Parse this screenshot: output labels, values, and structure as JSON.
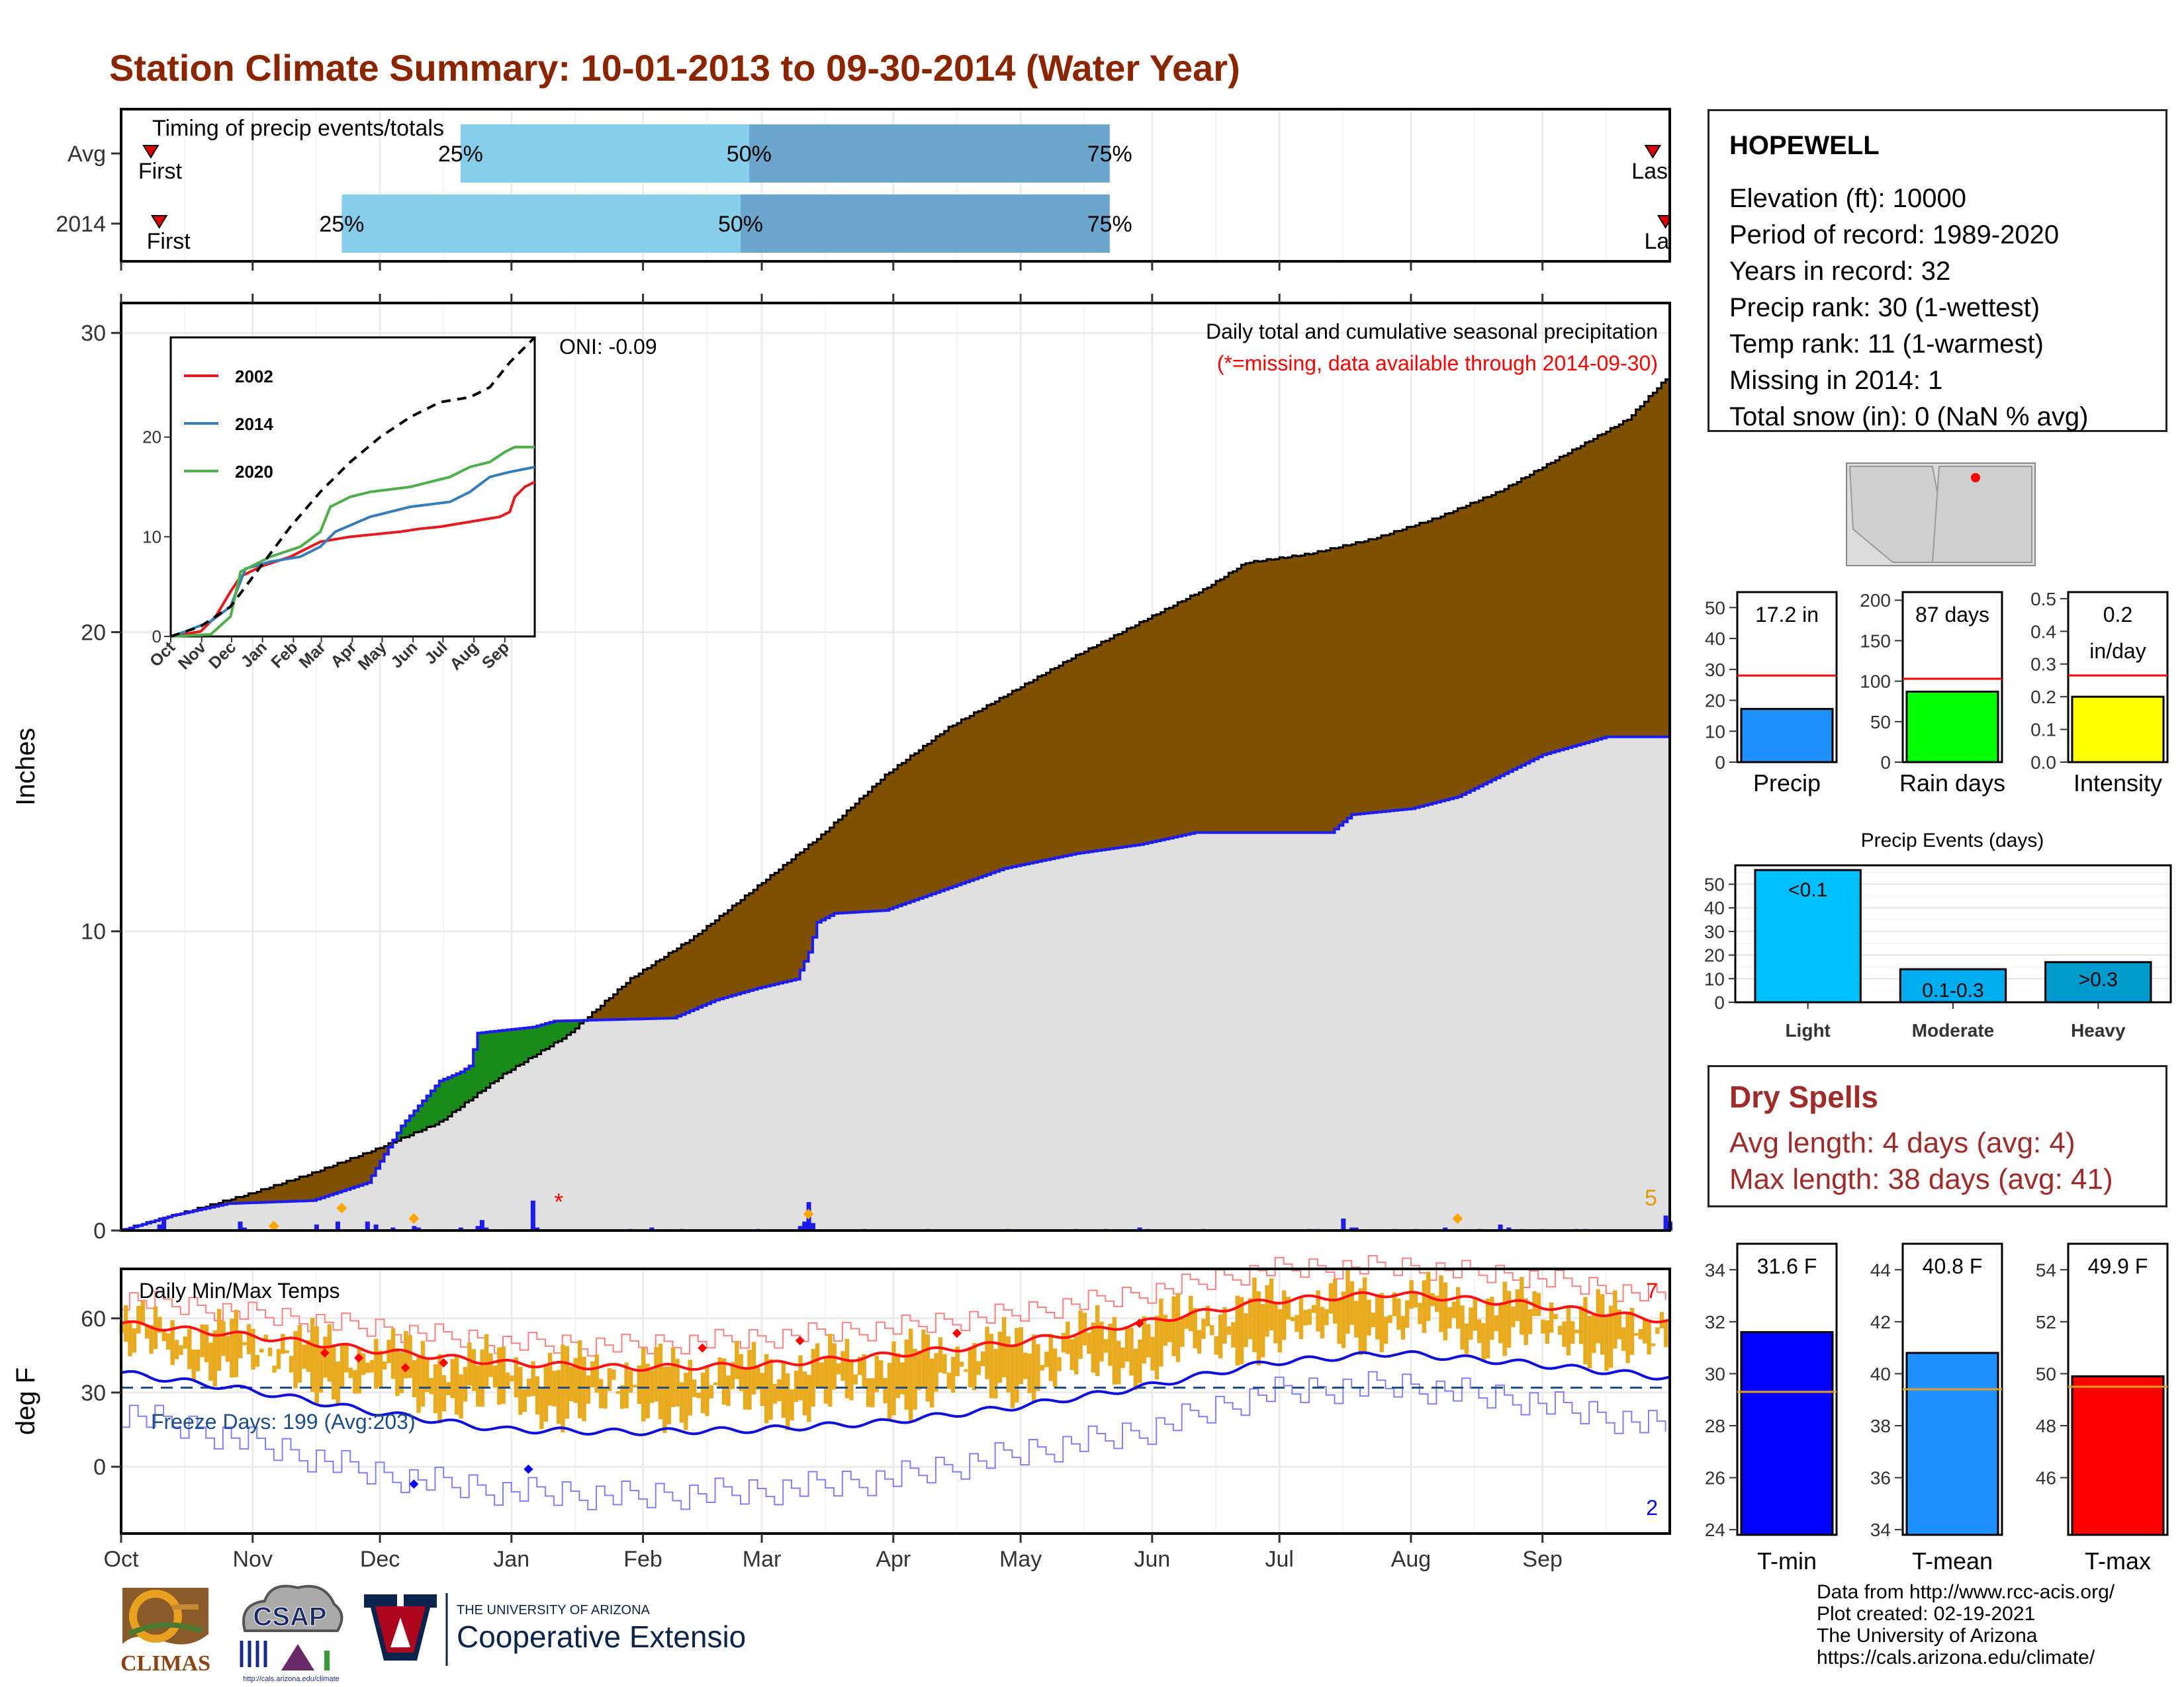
{
  "title": "Station Climate Summary: 10-01-2013 to 09-30-2014 (Water Year)",
  "station": {
    "name": "HOPEWELL",
    "lines": [
      "Elevation (ft): 10000",
      "Period of record: 1989-2020",
      "Years in record: 32",
      "Precip rank: 30 (1-wettest)",
      "Temp rank: 11 (1-warmest)",
      "Missing in 2014: 1",
      "Total snow (in): 0 (NaN % avg)"
    ]
  },
  "dry_spells": {
    "title": "Dry Spells",
    "avg_length": "Avg length: 4 days (avg: 4)",
    "max_length": "Max length: 38 days (avg: 41)"
  },
  "credits": [
    "Data from http://www.rcc-acis.org/",
    "Plot created: 02-19-2021",
    "The University of Arizona",
    "https://cals.arizona.edu/climate/"
  ],
  "logos": {
    "climas": "CLIMAS",
    "csap": "CSAP",
    "csap_url": "http://cals.arizona.edu/climate",
    "ua_small": "THE UNIVERSITY OF ARIZONA",
    "ua_big": "Cooperative Extension"
  },
  "colors": {
    "title": "#8B2500",
    "brown": "#7F5000",
    "precip_blue": "#1C1CF0",
    "gray_fill": "#E0E0E0",
    "temp_bar": "#E8AA1E",
    "tmax_line": "#FF1111",
    "tmin_line": "#1010DD",
    "light_blue": "#87CEEB",
    "mid_blue": "#6CA6CD",
    "dry_text": "#A02B2B"
  },
  "chart_data": [
    {
      "id": "timing",
      "type": "bar",
      "subtitle": "Timing of precip events/totals",
      "rows": [
        {
          "label": "Avg",
          "first": "First",
          "last": "Last",
          "first_date": "2013-10-08",
          "last_date": "2014-09-27",
          "p25": "2013-12-20",
          "p50": "2014-02-26",
          "p75": "2014-05-22"
        },
        {
          "label": "2014",
          "first": "First",
          "last": "Last",
          "first_date": "2013-10-10",
          "last_date": "2014-09-30",
          "p25": "2013-11-22",
          "p50": "2014-02-24",
          "p75": "2014-05-22"
        }
      ],
      "percent_labels": [
        "25%",
        "50%",
        "75%"
      ]
    },
    {
      "id": "precip",
      "type": "area",
      "ylabel": "Inches",
      "ylim": [
        0,
        31
      ],
      "yticks": [
        0,
        10,
        20,
        30
      ],
      "subtitle": "Daily total and cumulative seasonal precipitation",
      "note": "(*=missing, data available through 2014-09-30)",
      "oni": "ONI: -0.09",
      "corner_count": "5",
      "missing_marker": "*",
      "avg_cumulative": [
        [
          0,
          0
        ],
        [
          15,
          0.6
        ],
        [
          30,
          1.2
        ],
        [
          45,
          1.9
        ],
        [
          60,
          2.7
        ],
        [
          75,
          3.6
        ],
        [
          90,
          5.2
        ],
        [
          105,
          6.5
        ],
        [
          120,
          8.4
        ],
        [
          135,
          9.8
        ],
        [
          150,
          11.5
        ],
        [
          165,
          13.2
        ],
        [
          180,
          15.2
        ],
        [
          195,
          16.8
        ],
        [
          210,
          18.0
        ],
        [
          225,
          19.2
        ],
        [
          240,
          20.3
        ],
        [
          255,
          21.4
        ],
        [
          265,
          22.3
        ],
        [
          280,
          22.6
        ],
        [
          295,
          23.1
        ],
        [
          310,
          23.8
        ],
        [
          325,
          24.7
        ],
        [
          340,
          25.9
        ],
        [
          355,
          27.1
        ],
        [
          365,
          28.6
        ]
      ],
      "obs_cumulative": [
        [
          0,
          0
        ],
        [
          12,
          0.5
        ],
        [
          25,
          0.9
        ],
        [
          45,
          1.0
        ],
        [
          58,
          1.6
        ],
        [
          66,
          3.5
        ],
        [
          75,
          5.0
        ],
        [
          80,
          5.3
        ],
        [
          82,
          5.5
        ],
        [
          84,
          6.6
        ],
        [
          97,
          6.8
        ],
        [
          102,
          7.0
        ],
        [
          130,
          7.1
        ],
        [
          140,
          7.7
        ],
        [
          150,
          8.1
        ],
        [
          159,
          8.4
        ],
        [
          162,
          9.3
        ],
        [
          164,
          10.3
        ],
        [
          168,
          10.6
        ],
        [
          180,
          10.7
        ],
        [
          198,
          11.6
        ],
        [
          208,
          12.1
        ],
        [
          225,
          12.6
        ],
        [
          240,
          12.9
        ],
        [
          253,
          13.3
        ],
        [
          285,
          13.3
        ],
        [
          290,
          13.9
        ],
        [
          304,
          14.1
        ],
        [
          315,
          14.5
        ],
        [
          325,
          15.2
        ],
        [
          335,
          15.9
        ],
        [
          350,
          16.5
        ],
        [
          364,
          16.5
        ],
        [
          365,
          17.2
        ]
      ],
      "daily_bars": [
        [
          9,
          0.2
        ],
        [
          10,
          0.4
        ],
        [
          28,
          0.3
        ],
        [
          29,
          0.1
        ],
        [
          46,
          0.2
        ],
        [
          51,
          0.3
        ],
        [
          58,
          0.3
        ],
        [
          60,
          0.2
        ],
        [
          64,
          0.1
        ],
        [
          69,
          0.15
        ],
        [
          70,
          0.1
        ],
        [
          80,
          0.1
        ],
        [
          84,
          0.15
        ],
        [
          85,
          0.35
        ],
        [
          86,
          0.1
        ],
        [
          97,
          1.0
        ],
        [
          98,
          0.1
        ],
        [
          120,
          0.05
        ],
        [
          125,
          0.1
        ],
        [
          132,
          0.05
        ],
        [
          150,
          0.05
        ],
        [
          160,
          0.15
        ],
        [
          161,
          0.3
        ],
        [
          162,
          0.95
        ],
        [
          163,
          0.25
        ],
        [
          175,
          0.05
        ],
        [
          190,
          0.05
        ],
        [
          209,
          0.05
        ],
        [
          225,
          0.05
        ],
        [
          232,
          0.05
        ],
        [
          240,
          0.1
        ],
        [
          242,
          0.05
        ],
        [
          255,
          0.05
        ],
        [
          280,
          0.05
        ],
        [
          282,
          0.05
        ],
        [
          288,
          0.4
        ],
        [
          291,
          0.1
        ],
        [
          290,
          0.1
        ],
        [
          300,
          0.05
        ],
        [
          305,
          0.05
        ],
        [
          312,
          0.1
        ],
        [
          320,
          0.05
        ],
        [
          325,
          0.2
        ],
        [
          327,
          0.1
        ],
        [
          330,
          0.05
        ],
        [
          335,
          0.05
        ],
        [
          343,
          0.05
        ],
        [
          345,
          0.05
        ],
        [
          364,
          0.5
        ],
        [
          365,
          0.3
        ]
      ],
      "snow_markers": [
        [
          36,
          0.15
        ],
        [
          52,
          0.75
        ],
        [
          69,
          0.4
        ],
        [
          162,
          0.55
        ],
        [
          315,
          0.4
        ]
      ]
    },
    {
      "id": "inset",
      "type": "line",
      "x_categories": [
        "Oct",
        "Nov",
        "Dec",
        "Jan",
        "Feb",
        "Mar",
        "Apr",
        "May",
        "Jun",
        "Jul",
        "Aug",
        "Sep"
      ],
      "ylim": [
        0,
        30
      ],
      "yticks": [
        0,
        10,
        20
      ],
      "series": [
        {
          "name": "2002",
          "color": "#E41A1C",
          "values": [
            [
              0,
              0
            ],
            [
              30,
              0.5
            ],
            [
              45,
              2
            ],
            [
              60,
              4.5
            ],
            [
              70,
              6
            ],
            [
              90,
              7
            ],
            [
              105,
              7.5
            ],
            [
              120,
              8
            ],
            [
              150,
              9.5
            ],
            [
              180,
              10
            ],
            [
              200,
              10.2
            ],
            [
              230,
              10.5
            ],
            [
              250,
              10.8
            ],
            [
              270,
              11
            ],
            [
              300,
              11.5
            ],
            [
              330,
              12
            ],
            [
              340,
              12.5
            ],
            [
              345,
              14
            ],
            [
              355,
              15
            ],
            [
              365,
              15.5
            ]
          ]
        },
        {
          "name": "2014",
          "color": "#377EB8",
          "values": [
            [
              0,
              0
            ],
            [
              15,
              0.5
            ],
            [
              40,
              1.5
            ],
            [
              60,
              3
            ],
            [
              75,
              6.8
            ],
            [
              100,
              7.5
            ],
            [
              130,
              8
            ],
            [
              150,
              9
            ],
            [
              165,
              10.5
            ],
            [
              200,
              12
            ],
            [
              240,
              13
            ],
            [
              280,
              13.5
            ],
            [
              300,
              14.5
            ],
            [
              320,
              16
            ],
            [
              340,
              16.5
            ],
            [
              365,
              17
            ]
          ]
        },
        {
          "name": "2020",
          "color": "#4DAF4A",
          "values": [
            [
              0,
              0
            ],
            [
              40,
              0.2
            ],
            [
              60,
              2
            ],
            [
              70,
              6.5
            ],
            [
              100,
              8
            ],
            [
              130,
              9
            ],
            [
              150,
              10.5
            ],
            [
              160,
              13
            ],
            [
              180,
              14
            ],
            [
              200,
              14.5
            ],
            [
              240,
              15
            ],
            [
              260,
              15.5
            ],
            [
              280,
              16
            ],
            [
              300,
              17
            ],
            [
              320,
              17.5
            ],
            [
              335,
              18.5
            ],
            [
              345,
              19
            ],
            [
              365,
              19
            ]
          ]
        }
      ],
      "avg": [
        [
          0,
          0
        ],
        [
          30,
          1
        ],
        [
          60,
          3
        ],
        [
          90,
          7
        ],
        [
          120,
          11
        ],
        [
          150,
          14.5
        ],
        [
          180,
          17.5
        ],
        [
          210,
          20
        ],
        [
          240,
          22
        ],
        [
          270,
          23.5
        ],
        [
          300,
          24
        ],
        [
          320,
          25
        ],
        [
          340,
          27.5
        ],
        [
          365,
          30
        ]
      ]
    },
    {
      "id": "temps",
      "type": "bar",
      "subtitle": "Daily Min/Max Temps",
      "ylabel": "deg F",
      "ylim": [
        -27,
        80
      ],
      "yticks": [
        0,
        30,
        60
      ],
      "freeze_label": "Freeze Days: 199 (Avg:203)",
      "freeze_line": 32,
      "record_high_count": "7",
      "record_low_count": "2",
      "avg_tmax": [
        [
          0,
          58
        ],
        [
          30,
          53
        ],
        [
          60,
          47
        ],
        [
          90,
          42
        ],
        [
          120,
          40
        ],
        [
          150,
          41
        ],
        [
          180,
          45
        ],
        [
          210,
          50
        ],
        [
          240,
          58
        ],
        [
          270,
          67
        ],
        [
          300,
          70
        ],
        [
          330,
          66
        ],
        [
          365,
          59
        ]
      ],
      "avg_tmin": [
        [
          0,
          38
        ],
        [
          30,
          31
        ],
        [
          60,
          22
        ],
        [
          90,
          15
        ],
        [
          120,
          14
        ],
        [
          150,
          15
        ],
        [
          180,
          18
        ],
        [
          210,
          24
        ],
        [
          240,
          32
        ],
        [
          270,
          42
        ],
        [
          300,
          46
        ],
        [
          330,
          42
        ],
        [
          365,
          36
        ]
      ],
      "rec_high": [
        [
          0,
          68
        ],
        [
          30,
          62
        ],
        [
          60,
          56
        ],
        [
          90,
          50
        ],
        [
          120,
          49
        ],
        [
          150,
          52
        ],
        [
          180,
          56
        ],
        [
          210,
          62
        ],
        [
          240,
          70
        ],
        [
          270,
          80
        ],
        [
          300,
          81
        ],
        [
          330,
          77
        ],
        [
          365,
          68
        ]
      ],
      "rec_low": [
        [
          0,
          22
        ],
        [
          30,
          10
        ],
        [
          60,
          -3
        ],
        [
          90,
          -10
        ],
        [
          120,
          -12
        ],
        [
          150,
          -10
        ],
        [
          180,
          -5
        ],
        [
          210,
          5
        ],
        [
          240,
          14
        ],
        [
          270,
          30
        ],
        [
          300,
          33
        ],
        [
          330,
          27
        ],
        [
          365,
          15
        ]
      ]
    },
    {
      "id": "mini_bars",
      "type": "bar",
      "items": [
        {
          "label": "Precip",
          "value": 17.2,
          "value_label": "17.2 in",
          "avg": 28,
          "ylim": [
            0,
            55
          ],
          "yticks": [
            0,
            10,
            20,
            30,
            40,
            50
          ],
          "color": "#1E90FF"
        },
        {
          "label": "Rain days",
          "value": 87,
          "value_label": "87 days",
          "avg": 103,
          "ylim": [
            0,
            210
          ],
          "yticks": [
            0,
            50,
            100,
            150,
            200
          ],
          "color": "#00FF00"
        },
        {
          "label": "Intensity",
          "value": 0.2,
          "value_label": "0.2\nin/day",
          "value_label_lines": [
            "0.2",
            "in/day"
          ],
          "avg": 0.265,
          "ylim": [
            0,
            0.52
          ],
          "yticks": [
            "0.0",
            "0.1",
            "0.2",
            "0.3",
            "0.4",
            "0.5"
          ],
          "color": "#FFFF00"
        }
      ]
    },
    {
      "id": "events",
      "type": "bar",
      "title": "Precip Events (days)",
      "categories": [
        "Light",
        "Moderate",
        "Heavy"
      ],
      "bar_labels": [
        "<0.1",
        "0.1-0.3",
        ">0.3"
      ],
      "values": [
        56,
        14,
        17
      ],
      "colors": [
        "#00BFFF",
        "#00AEEF",
        "#009ACD"
      ],
      "ylim": [
        0,
        58
      ],
      "yticks": [
        0,
        10,
        20,
        30,
        40,
        50
      ]
    },
    {
      "id": "temp_bars",
      "type": "bar",
      "items": [
        {
          "label": "T-min",
          "value": 31.6,
          "value_label": "31.6 F",
          "avg": 29.3,
          "ylim": [
            23.8,
            35
          ],
          "yticks": [
            24,
            26,
            28,
            30,
            32,
            34
          ],
          "color": "#0000FF"
        },
        {
          "label": "T-mean",
          "value": 40.8,
          "value_label": "40.8 F",
          "avg": 39.4,
          "ylim": [
            33.8,
            45
          ],
          "yticks": [
            34,
            36,
            38,
            40,
            42,
            44
          ],
          "color": "#1E90FF"
        },
        {
          "label": "T-max",
          "value": 49.9,
          "value_label": "49.9 F",
          "avg": 49.5,
          "ylim": [
            43.8,
            55
          ],
          "yticks": [
            46,
            48,
            50,
            52,
            54
          ],
          "color": "#FF0000"
        }
      ]
    },
    {
      "id": "month_axis",
      "type": "table",
      "labels": [
        "Oct",
        "Nov",
        "Dec",
        "Jan",
        "Feb",
        "Mar",
        "Apr",
        "May",
        "Jun",
        "Jul",
        "Aug",
        "Sep"
      ],
      "day_offsets": [
        0,
        31,
        61,
        92,
        123,
        151,
        182,
        212,
        243,
        273,
        304,
        335
      ]
    }
  ]
}
